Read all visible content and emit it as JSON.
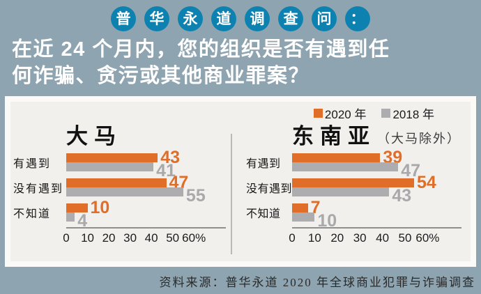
{
  "header": {
    "badges": [
      "普",
      "华",
      "永",
      "道",
      "调",
      "查",
      "问",
      "："
    ]
  },
  "question": {
    "line1": "在近 24 个月内，您的组织是否有遇到任",
    "line2": "何诈骗、贪污或其他商业罪案？"
  },
  "legend": [
    {
      "label": "2020 年",
      "color": "#e06e28"
    },
    {
      "label": "2018 年",
      "color": "#adadaf"
    }
  ],
  "colors": {
    "accent_orange": "#e06e28",
    "bar_gray": "#adadaf",
    "gray_value_text": "#a9a9ab",
    "badge_blue": "#0d81af",
    "page_background": "#8ea4b0"
  },
  "chart_data": [
    {
      "type": "bar",
      "title": "大马",
      "subtitle": "",
      "categories": [
        "有遇到",
        "没有遇到",
        "不知道"
      ],
      "series": [
        {
          "name": "2020 年",
          "color": "#e06e28",
          "values": [
            43,
            47,
            10
          ]
        },
        {
          "name": "2018 年",
          "color": "#adadaf",
          "values": [
            41,
            55,
            4
          ]
        }
      ],
      "xlim": [
        0,
        75
      ],
      "xticks": [
        {
          "v": 0,
          "label": "0"
        },
        {
          "v": 10,
          "label": "10"
        },
        {
          "v": 20,
          "label": "20"
        },
        {
          "v": 30,
          "label": "30"
        },
        {
          "v": 40,
          "label": "40"
        },
        {
          "v": 50,
          "label": "50"
        },
        {
          "v": 60,
          "label": "60%"
        }
      ],
      "legend_position": "top-right",
      "grid": false
    },
    {
      "type": "bar",
      "title": "东南亚",
      "subtitle": "（大马除外）",
      "categories": [
        "有遇到",
        "没有遇到",
        "不知道"
      ],
      "series": [
        {
          "name": "2020 年",
          "color": "#e06e28",
          "values": [
            39,
            54,
            7
          ]
        },
        {
          "name": "2018 年",
          "color": "#adadaf",
          "values": [
            47,
            43,
            10
          ]
        }
      ],
      "xlim": [
        0,
        75
      ],
      "xticks": [
        {
          "v": 0,
          "label": "0"
        },
        {
          "v": 10,
          "label": "10"
        },
        {
          "v": 20,
          "label": "20"
        },
        {
          "v": 30,
          "label": "30"
        },
        {
          "v": 40,
          "label": "40"
        },
        {
          "v": 50,
          "label": "50"
        },
        {
          "v": 60,
          "label": "60%"
        }
      ],
      "legend_position": "top-right",
      "grid": false
    }
  ],
  "footer": {
    "source": "资料来源：普华永道 2020 年全球商业犯罪与诈骗调查"
  }
}
